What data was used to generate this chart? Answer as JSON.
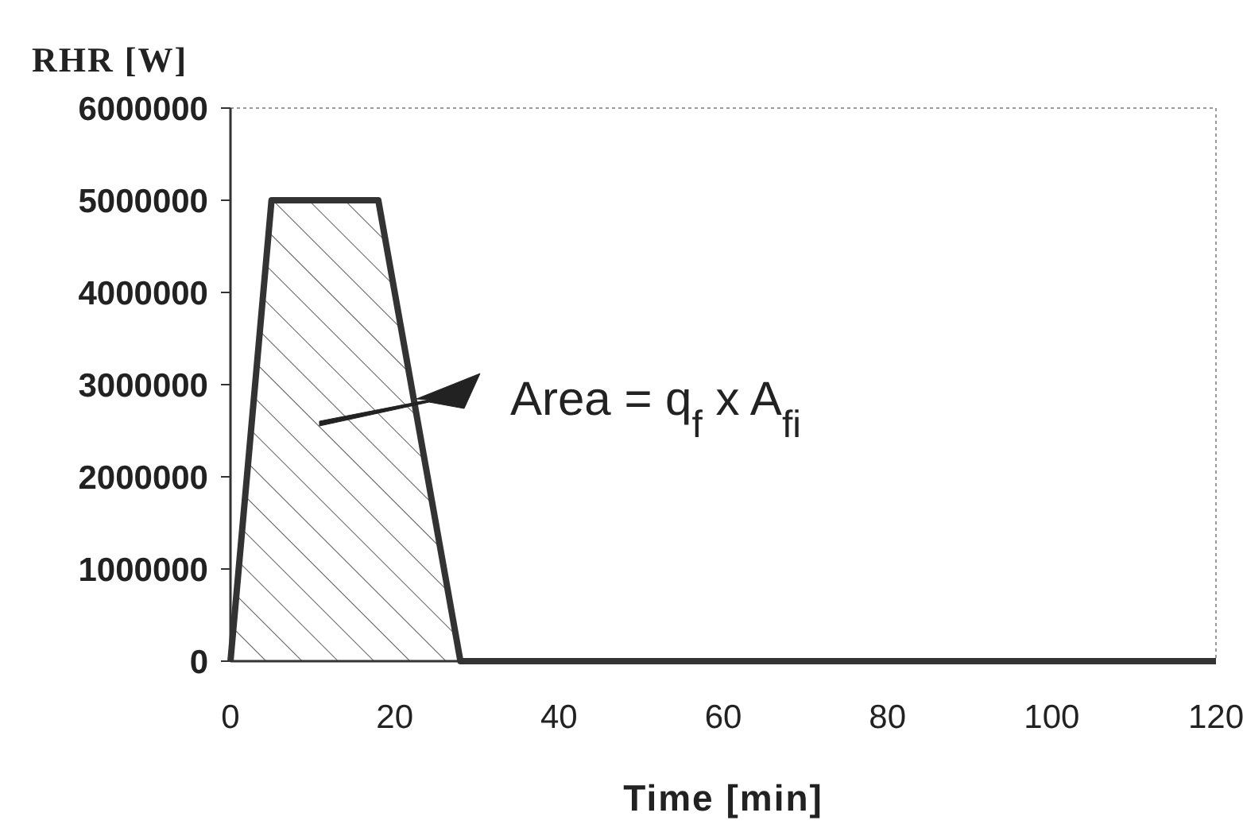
{
  "chart_data": {
    "type": "area",
    "xlabel": "Time [min]",
    "ylabel": "RHR [W]",
    "x": [
      0,
      5,
      18,
      28,
      120
    ],
    "series": [
      {
        "color": "#333333",
        "values": [
          0,
          5000000,
          5000000,
          0,
          0
        ]
      }
    ],
    "xlim": [
      0,
      120
    ],
    "xticks": [
      0,
      20,
      40,
      60,
      80,
      100,
      120
    ],
    "ylim": [
      0,
      6000000
    ],
    "yticks": [
      0,
      1000000,
      2000000,
      3000000,
      4000000,
      5000000,
      6000000
    ],
    "annotations": [
      "Area = q$_{f}$ x A$_{fi}$"
    ],
    "grid": false
  }
}
